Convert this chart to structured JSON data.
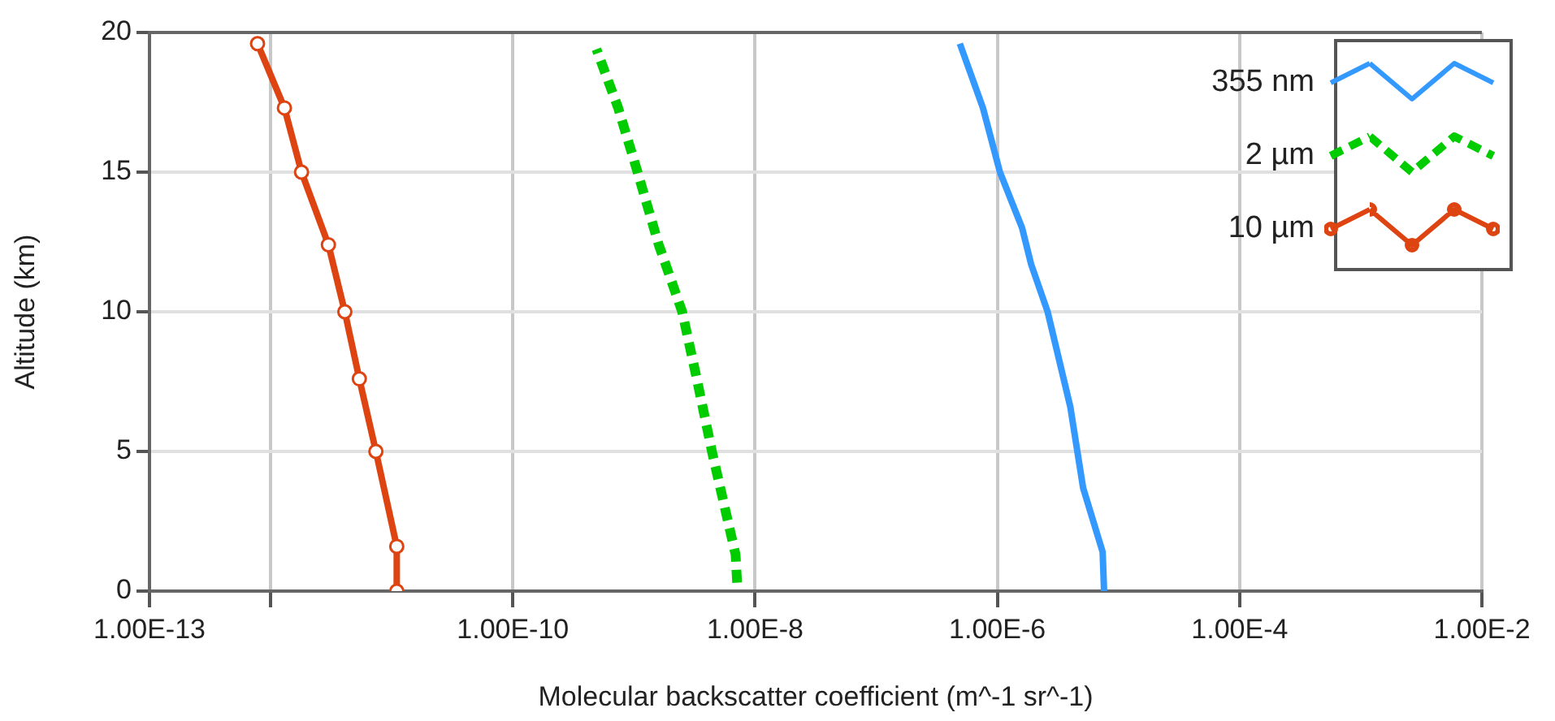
{
  "chart_data": {
    "type": "line",
    "xlabel": "Molecular backscatter coefficient (m^-1 sr^-1)",
    "ylabel": "Altitude (km)",
    "log": "x",
    "grid": true,
    "legend": "top right",
    "xlim": [
      1e-13,
      0.01
    ],
    "xticks": [
      {
        "value": 1e-13,
        "label": "1.00E-13"
      },
      {
        "value": 1e-12,
        "label": null
      },
      {
        "value": 1e-10,
        "label": "1.00E-10"
      },
      {
        "value": 1e-08,
        "label": "1.00E-8"
      },
      {
        "value": 1e-06,
        "label": "1.00E-6"
      },
      {
        "value": 0.0001,
        "label": "1.00E-4"
      },
      {
        "value": 0.01,
        "label": "1.00E-2"
      }
    ],
    "ylim": [
      0,
      20
    ],
    "yticks": [
      0,
      5,
      10,
      15,
      20
    ],
    "series": [
      {
        "name": "355 nm",
        "color": "#3399ff",
        "marker": "none",
        "line_style": "solid",
        "x": [
          7.6e-06,
          7.4e-06,
          5.1e-06,
          4e-06,
          2.6e-06,
          1.9e-06,
          1.6e-06,
          1.05e-06,
          7.6e-07,
          4.9e-07
        ],
        "values": [
          0,
          1.4,
          3.7,
          6.6,
          10,
          11.7,
          13,
          15,
          17.3,
          19.6
        ]
      },
      {
        "name": "2 µm",
        "color": "#00cc00",
        "marker": "none",
        "line_style": "dashed",
        "x": [
          7.1e-09,
          6.9e-09,
          4.4e-09,
          3.3e-09,
          2.5e-09,
          1.6e-09,
          1.07e-09,
          7.4e-10,
          4.9e-10
        ],
        "values": [
          0.3,
          1.3,
          5,
          7.6,
          10,
          12.4,
          15,
          17.3,
          19.4
        ]
      },
      {
        "name": "10 µm",
        "color": "#dd4411",
        "marker": "circle",
        "line_style": "solid",
        "x": [
          1.1e-11,
          1.1e-11,
          7.4e-12,
          5.4e-12,
          4.1e-12,
          3e-12,
          1.8e-12,
          1.3e-12,
          7.8e-13
        ],
        "values": [
          0,
          1.6,
          5,
          7.6,
          10,
          12.4,
          15,
          17.3,
          19.6
        ]
      }
    ]
  }
}
